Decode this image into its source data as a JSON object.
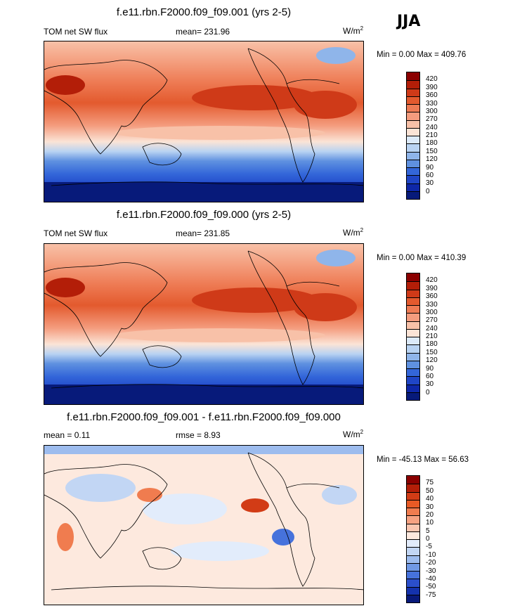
{
  "season": "JJA",
  "panels": [
    {
      "title": "f.e11.rbn.F2000.f09_f09.001 (yrs 2-5)",
      "left_label": "TOM net SW flux",
      "center_label": "mean= 231.96",
      "units_base": "W/m",
      "units_exp": "2",
      "minmax": "Min =   0.00 Max = 409.76",
      "colorbar": {
        "labels": [
          "420",
          "390",
          "360",
          "330",
          "300",
          "270",
          "240",
          "210",
          "180",
          "150",
          "120",
          "90",
          "60",
          "30",
          "0"
        ],
        "colors": [
          "#8b0000",
          "#b31e08",
          "#cf3a18",
          "#e35a2e",
          "#ee7b54",
          "#f49c7e",
          "#f8c1a8",
          "#fbe4d6",
          "#dceaf9",
          "#b9d3f2",
          "#8fb5ea",
          "#5f91e0",
          "#3366d9",
          "#1f45c6",
          "#0e27a8",
          "#071a7a"
        ]
      }
    },
    {
      "title": "f.e11.rbn.F2000.f09_f09.000 (yrs 2-5)",
      "left_label": "TOM net SW flux",
      "center_label": "mean= 231.85",
      "units_base": "W/m",
      "units_exp": "2",
      "minmax": "Min =   0.00 Max = 410.39",
      "colorbar": {
        "labels": [
          "420",
          "390",
          "360",
          "330",
          "300",
          "270",
          "240",
          "210",
          "180",
          "150",
          "120",
          "90",
          "60",
          "30",
          "0"
        ],
        "colors": [
          "#8b0000",
          "#b31e08",
          "#cf3a18",
          "#e35a2e",
          "#ee7b54",
          "#f49c7e",
          "#f8c1a8",
          "#fbe4d6",
          "#dceaf9",
          "#b9d3f2",
          "#8fb5ea",
          "#5f91e0",
          "#3366d9",
          "#1f45c6",
          "#0e27a8",
          "#071a7a"
        ]
      }
    },
    {
      "title": "f.e11.rbn.F2000.f09_f09.001 - f.e11.rbn.F2000.f09_f09.000",
      "left_label": "mean =   0.11",
      "center_label": "rmse =   8.93",
      "units_base": "W/m",
      "units_exp": "2",
      "minmax": "Min = -45.13 Max =  56.63",
      "colorbar": {
        "labels": [
          "75",
          "50",
          "40",
          "30",
          "20",
          "10",
          "5",
          "0",
          "-5",
          "-10",
          "-20",
          "-30",
          "-40",
          "-50",
          "-75"
        ],
        "colors": [
          "#8b0000",
          "#b31e08",
          "#d23c16",
          "#e85a25",
          "#f07c4f",
          "#f6a282",
          "#fac6b0",
          "#fde9de",
          "#e2ecfb",
          "#c2d6f4",
          "#9dbcee",
          "#7099e5",
          "#4672dc",
          "#2b4fcb",
          "#1432ad",
          "#08197a"
        ]
      }
    }
  ]
}
